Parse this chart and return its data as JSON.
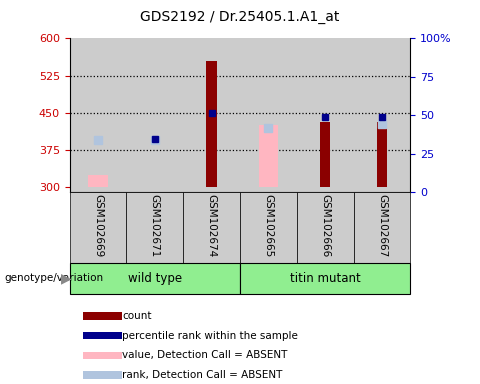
{
  "title": "GDS2192 / Dr.25405.1.A1_at",
  "samples": [
    "GSM102669",
    "GSM102671",
    "GSM102674",
    "GSM102665",
    "GSM102666",
    "GSM102667"
  ],
  "groups": [
    {
      "label": "wild type",
      "indices": [
        0,
        1,
        2
      ]
    },
    {
      "label": "titin mutant",
      "indices": [
        3,
        4,
        5
      ]
    }
  ],
  "ylim_left": [
    290,
    600
  ],
  "ylim_right": [
    0,
    100
  ],
  "yticks_left": [
    300,
    375,
    450,
    525,
    600
  ],
  "yticks_right": [
    0,
    25,
    50,
    75,
    100
  ],
  "baseline": 300,
  "yrange": 300,
  "red_count_top": [
    null,
    null,
    555,
    null,
    432,
    432
  ],
  "blue_rank_pct": [
    null,
    32,
    50,
    null,
    47,
    47
  ],
  "pink_absent_top": [
    325,
    null,
    null,
    425,
    null,
    null
  ],
  "lightblue_absent_y": [
    395,
    395,
    null,
    420,
    null,
    427
  ],
  "colors": {
    "red": "#8B0000",
    "blue": "#00008B",
    "pink": "#FFB6C1",
    "lightblue": "#B0C4DE",
    "axis_left": "#CC0000",
    "axis_right": "#0000CC",
    "grid_bg": "#cccccc",
    "group_bg": "#90ee90",
    "white": "#ffffff"
  },
  "legend": [
    {
      "color": "#8B0000",
      "label": "count"
    },
    {
      "color": "#00008B",
      "label": "percentile rank within the sample"
    },
    {
      "color": "#FFB6C1",
      "label": "value, Detection Call = ABSENT"
    },
    {
      "color": "#B0C4DE",
      "label": "rank, Detection Call = ABSENT"
    }
  ]
}
